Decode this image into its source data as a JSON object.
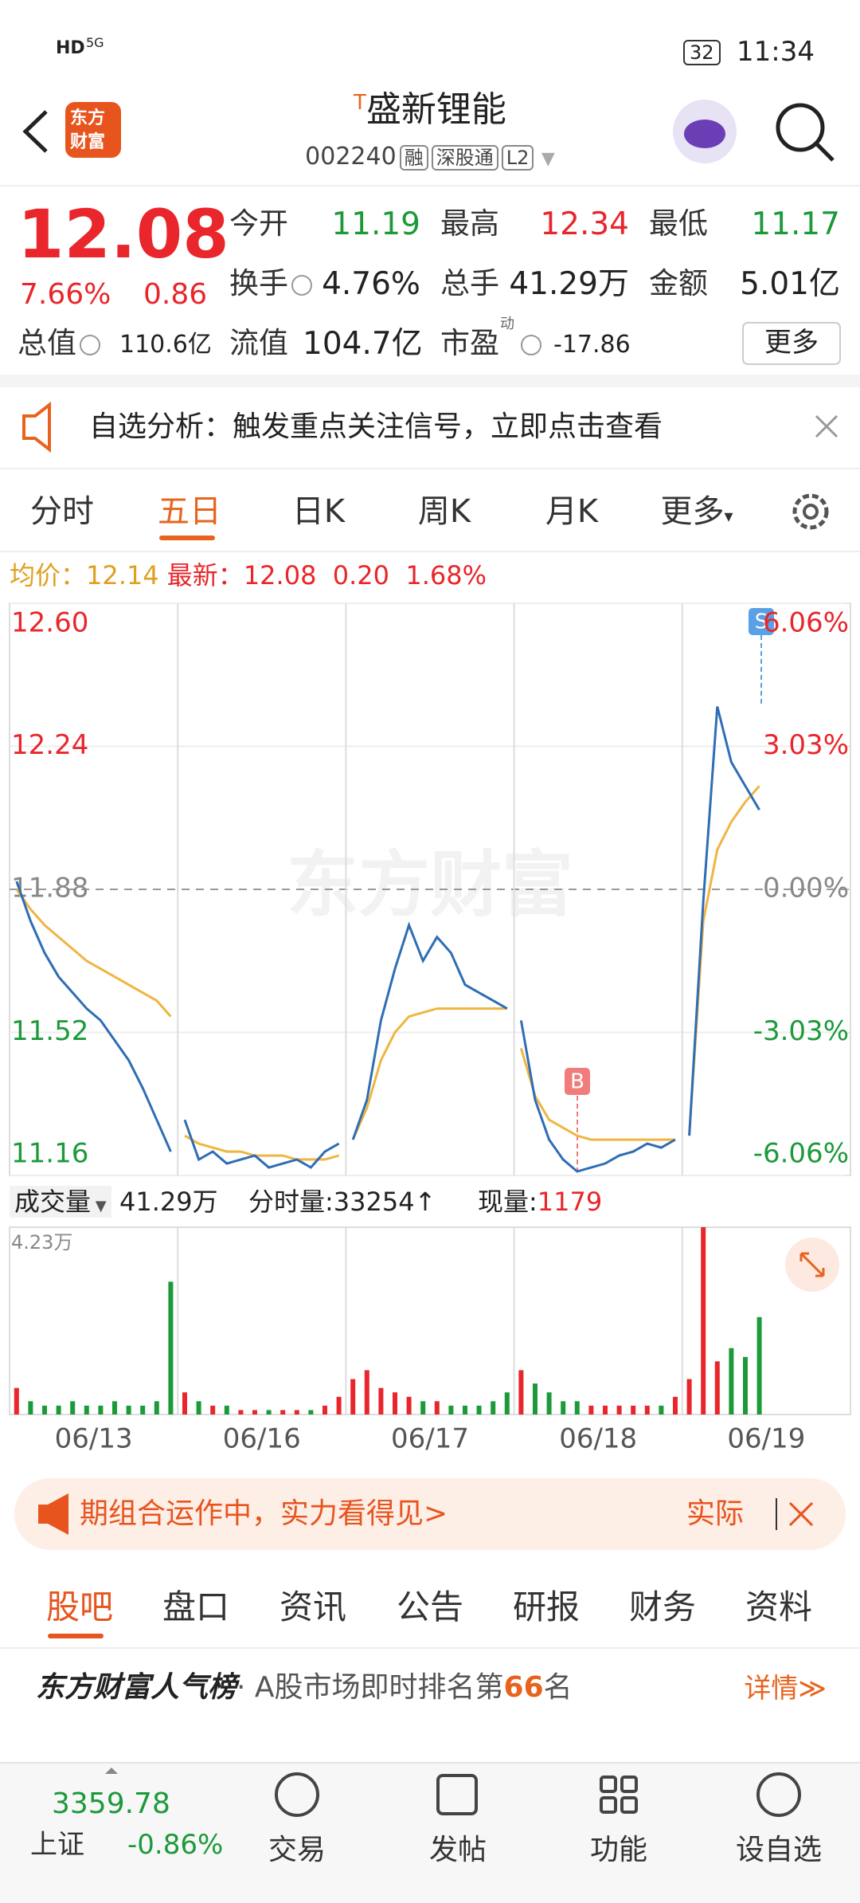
{
  "status_bar": {
    "network": [
      "HD",
      "5G"
    ],
    "battery": "32",
    "time": "11:34"
  },
  "header": {
    "logo": [
      "东方",
      "财富"
    ],
    "badge": "T",
    "title": "盛新锂能",
    "code": "002240",
    "tags": [
      "融",
      "深股通",
      "L2"
    ]
  },
  "quote": {
    "price": "12.08",
    "change_pct": "7.66%",
    "change": "0.86",
    "fields": [
      {
        "label": "今开",
        "value": "11.19",
        "color": "#1c9a3a"
      },
      {
        "label": "最高",
        "value": "12.34",
        "color": "#e8262b"
      },
      {
        "label": "最低",
        "value": "11.17",
        "color": "#1c9a3a"
      },
      {
        "label": "换手",
        "value": "4.76%"
      },
      {
        "label": "总手",
        "value": "41.29万"
      },
      {
        "label": "金额",
        "value": "5.01亿"
      },
      {
        "label": "总值",
        "value": "110.6亿"
      },
      {
        "label": "流值",
        "value": "104.7亿"
      },
      {
        "label": "市盈",
        "sup": "动",
        "value": "-17.86"
      }
    ],
    "more": "更多"
  },
  "notice": "自选分析：触发重点关注信号，立即点击查看",
  "tabs": [
    "分时",
    "五日",
    "日K",
    "周K",
    "月K",
    "更多"
  ],
  "summary": {
    "avg_label": "均价：",
    "avg": "12.14",
    "last_label": "最新：",
    "last": "12.08",
    "change": "0.20",
    "change_pct": "1.68%"
  },
  "chart_data": {
    "type": "line",
    "watermark": "东方财富",
    "ylim": [
      11.16,
      12.6
    ],
    "yticks": [
      {
        "value": 12.6,
        "label": "12.60"
      },
      12.24,
      11.88,
      11.52,
      11.16
    ],
    "y2lim": [
      -6.06,
      6.06
    ],
    "y2ticks": [
      {
        "value": 6.06,
        "label": "6.06%"
      },
      {
        "value": 3.03,
        "label": "3.03%"
      },
      {
        "value": 0,
        "label": "0.00%"
      },
      {
        "value": -3.03,
        "label": "-3.03%"
      },
      {
        "value": -6.06,
        "label": "-6.06%"
      }
    ],
    "price_color": "#2f6db5",
    "avg_color": "#f0b541",
    "up_color": "#e8262b",
    "down_color": "#1c9a3a",
    "markers": [
      "B",
      "S"
    ],
    "days": [
      {
        "date": "06/13",
        "price": [
          11.9,
          11.8,
          11.72,
          11.66,
          11.62,
          11.58,
          11.55,
          11.5,
          11.45,
          11.38,
          11.3,
          11.22
        ],
        "avg": [
          11.88,
          11.83,
          11.79,
          11.76,
          11.73,
          11.7,
          11.68,
          11.66,
          11.64,
          11.62,
          11.6,
          11.56
        ],
        "volume": [
          0.6,
          0.3,
          0.2,
          0.2,
          0.3,
          0.2,
          0.2,
          0.3,
          0.2,
          0.2,
          0.3,
          3.0
        ]
      },
      {
        "date": "06/16",
        "price": [
          11.3,
          11.2,
          11.22,
          11.19,
          11.2,
          11.21,
          11.18,
          11.19,
          11.2,
          11.18,
          11.22,
          11.24
        ],
        "avg": [
          11.26,
          11.24,
          11.23,
          11.22,
          11.22,
          11.21,
          11.21,
          11.21,
          11.2,
          11.2,
          11.2,
          11.21
        ],
        "volume": [
          0.5,
          0.3,
          0.2,
          0.2,
          0.1,
          0.1,
          0.1,
          0.1,
          0.1,
          0.1,
          0.2,
          0.4
        ]
      },
      {
        "date": "06/17",
        "price": [
          11.25,
          11.35,
          11.55,
          11.68,
          11.79,
          11.7,
          11.76,
          11.72,
          11.64,
          11.62,
          11.6,
          11.58
        ],
        "avg": [
          11.25,
          11.33,
          11.45,
          11.52,
          11.56,
          11.57,
          11.58,
          11.58,
          11.58,
          11.58,
          11.58,
          11.58
        ],
        "volume": [
          0.8,
          1.0,
          0.6,
          0.5,
          0.4,
          0.3,
          0.3,
          0.2,
          0.2,
          0.2,
          0.3,
          0.5
        ]
      },
      {
        "date": "06/18",
        "price": [
          11.55,
          11.35,
          11.25,
          11.2,
          11.17,
          11.18,
          11.19,
          11.21,
          11.22,
          11.24,
          11.23,
          11.25
        ],
        "avg": [
          11.48,
          11.36,
          11.3,
          11.28,
          11.26,
          11.25,
          11.25,
          11.25,
          11.25,
          11.25,
          11.25,
          11.25
        ],
        "volume": [
          1.0,
          0.7,
          0.5,
          0.3,
          0.3,
          0.2,
          0.2,
          0.2,
          0.2,
          0.2,
          0.2,
          0.4
        ]
      },
      {
        "date": "06/19",
        "price": [
          11.26,
          11.85,
          12.34,
          12.2,
          12.14,
          12.08
        ],
        "avg": [
          11.26,
          11.8,
          11.98,
          12.05,
          12.1,
          12.14
        ],
        "volume": [
          0.8,
          4.23,
          1.2,
          1.5,
          1.3,
          2.2
        ]
      }
    ],
    "volume": {
      "label": "成交量",
      "total": "41.29万",
      "tick_volume": "分时量:33254↑",
      "current_label": "现量:",
      "current": "1179",
      "ylim": [
        0,
        4.23
      ],
      "yticks": [
        {
          "value": 4.23,
          "label": "4.23万"
        }
      ]
    }
  },
  "banner": {
    "text": "期组合运作中，实力看得见>",
    "action": "实际"
  },
  "bottom_tabs": [
    "股吧",
    "盘口",
    "资讯",
    "公告",
    "研报",
    "财务",
    "资料"
  ],
  "rank": {
    "title": "东方财富人气榜",
    "text": "· A股市场即时排名第",
    "rank": "66",
    "suffix": "名",
    "more": "详情≫"
  },
  "index": {
    "value": "3359.78",
    "name": "上证",
    "change": "-0.86%"
  },
  "nav": [
    "交易",
    "发帖",
    "功能",
    "设自选"
  ]
}
